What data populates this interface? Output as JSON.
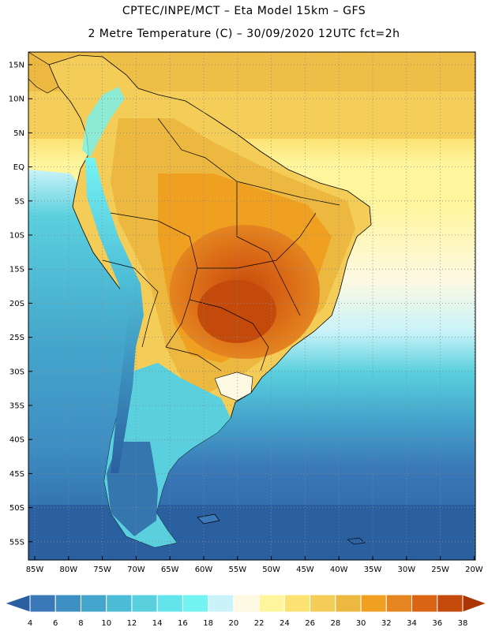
{
  "header": {
    "line1": "CPTEC/INPE/MCT –  Eta Model 15km – GFS",
    "line2": "2 Metre Temperature (C) – 30/09/2020 12UTC fct=2h"
  },
  "axes": {
    "lat_labels": [
      "15N",
      "10N",
      "5N",
      "EQ",
      "5S",
      "10S",
      "15S",
      "20S",
      "25S",
      "30S",
      "35S",
      "40S",
      "45S",
      "50S",
      "55S"
    ],
    "lon_labels": [
      "85W",
      "80W",
      "75W",
      "70W",
      "65W",
      "60W",
      "55W",
      "50W",
      "45W",
      "40W",
      "35W",
      "30W",
      "25W",
      "20W"
    ]
  },
  "colorbar": {
    "labels": [
      "4",
      "6",
      "8",
      "10",
      "12",
      "14",
      "16",
      "18",
      "20",
      "22",
      "24",
      "26",
      "28",
      "30",
      "32",
      "34",
      "36",
      "38"
    ],
    "colors": [
      "#2a5fa0",
      "#3a78b8",
      "#3e8fc4",
      "#44a6cc",
      "#4dbcd6",
      "#5ad0de",
      "#63e4ea",
      "#74f3f3",
      "#c9f3f8",
      "#fdf9e2",
      "#fef59c",
      "#fbe273",
      "#f4cc58",
      "#edb840",
      "#f0a020",
      "#e48520",
      "#d86414",
      "#c44a0c",
      "#aa3606"
    ]
  }
}
